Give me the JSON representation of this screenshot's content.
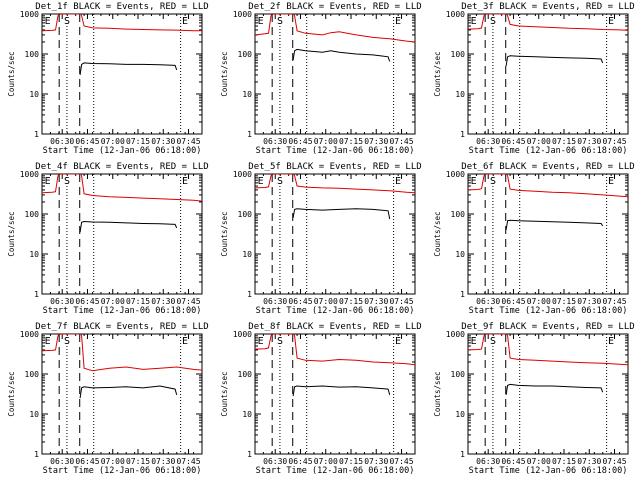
{
  "colors": {
    "events": "#000000",
    "lld": "#e00000",
    "background": "#ffffff"
  },
  "common": {
    "xlabel": "Start Time (12-Jan-06 06:18:00)",
    "ylabel": "Counts/sec",
    "xticks": [
      "06:30",
      "06:45",
      "07:00",
      "07:15",
      "07:30",
      "07:45"
    ],
    "yticks": [
      "1",
      "10",
      "100",
      "1000"
    ]
  },
  "chart_data": [
    {
      "type": "line",
      "title": "Det_1f BLACK = Events, RED = LLD",
      "x_unit": "minutes after 06:18:00",
      "xlim": [
        0,
        95
      ],
      "ylim": [
        1,
        1000
      ],
      "yscale": "log",
      "x_ticks_minutes": [
        12,
        27,
        42,
        57,
        72,
        87
      ],
      "markers": [
        {
          "label": "E",
          "x": 1
        },
        {
          "label": "S",
          "x": 12.5
        },
        {
          "label": "E",
          "x": 82.5
        }
      ],
      "dashed_lines_x": [
        10.2,
        22.4
      ],
      "dotted_lines_x": [
        14.8,
        30.7,
        82.3
      ],
      "series": [
        {
          "name": "LLD",
          "color": "#e00000",
          "x": [
            0,
            6,
            8,
            9.5,
            11,
            23,
            23.5,
            25,
            30,
            40,
            50,
            60,
            70,
            80,
            90,
            95
          ],
          "y": [
            380,
            390,
            400,
            900,
            1000,
            1000,
            900,
            500,
            450,
            440,
            420,
            410,
            400,
            395,
            380,
            380
          ]
        },
        {
          "name": "Events",
          "color": "#000000",
          "x": [
            22.6,
            23.5,
            25,
            30,
            40,
            50,
            60,
            70,
            79,
            80
          ],
          "y": [
            30,
            55,
            60,
            58,
            57,
            55,
            55,
            54,
            52,
            40
          ]
        }
      ]
    },
    {
      "type": "line",
      "title": "Det_2f BLACK = Events, RED = LLD",
      "x_unit": "minutes after 06:18:00",
      "xlim": [
        0,
        95
      ],
      "ylim": [
        1,
        1000
      ],
      "yscale": "log",
      "x_ticks_minutes": [
        12,
        27,
        42,
        57,
        72,
        87
      ],
      "markers": [
        {
          "label": "E",
          "x": 1
        },
        {
          "label": "S",
          "x": 12.5
        },
        {
          "label": "E",
          "x": 82.5
        }
      ],
      "dashed_lines_x": [
        10.2,
        22.4
      ],
      "dotted_lines_x": [
        14.8,
        30.7,
        82.3
      ],
      "series": [
        {
          "name": "LLD",
          "color": "#e00000",
          "x": [
            0,
            6,
            8,
            9.5,
            11,
            23,
            23.5,
            25,
            30,
            40,
            45,
            50,
            60,
            70,
            80,
            90,
            95
          ],
          "y": [
            300,
            320,
            330,
            900,
            1000,
            1000,
            900,
            380,
            330,
            300,
            340,
            360,
            300,
            260,
            240,
            210,
            200
          ]
        },
        {
          "name": "Events",
          "color": "#000000",
          "x": [
            22.6,
            23.5,
            25,
            30,
            40,
            45,
            50,
            60,
            70,
            79,
            80
          ],
          "y": [
            70,
            120,
            130,
            120,
            110,
            120,
            110,
            100,
            95,
            85,
            65
          ]
        }
      ]
    },
    {
      "type": "line",
      "title": "Det_3f BLACK = Events, RED = LLD",
      "x_unit": "minutes after 06:18:00",
      "xlim": [
        0,
        95
      ],
      "ylim": [
        1,
        1000
      ],
      "yscale": "log",
      "x_ticks_minutes": [
        12,
        27,
        42,
        57,
        72,
        87
      ],
      "markers": [
        {
          "label": "E",
          "x": 1
        },
        {
          "label": "S",
          "x": 12.5
        },
        {
          "label": "E",
          "x": 82.5
        }
      ],
      "dashed_lines_x": [
        10.2,
        22.4
      ],
      "dotted_lines_x": [
        14.8,
        30.7,
        82.3
      ],
      "series": [
        {
          "name": "LLD",
          "color": "#e00000",
          "x": [
            0,
            6,
            8,
            9.5,
            11,
            23,
            23.5,
            25,
            30,
            40,
            50,
            60,
            70,
            80,
            90,
            95
          ],
          "y": [
            420,
            430,
            450,
            900,
            1000,
            1000,
            900,
            550,
            500,
            480,
            460,
            440,
            430,
            410,
            400,
            390
          ]
        },
        {
          "name": "Events",
          "color": "#000000",
          "x": [
            22.6,
            23.5,
            25,
            30,
            40,
            50,
            60,
            70,
            79,
            80
          ],
          "y": [
            50,
            85,
            90,
            88,
            85,
            82,
            80,
            78,
            75,
            60
          ]
        }
      ]
    },
    {
      "type": "line",
      "title": "Det_4f BLACK = Events, RED = LLD",
      "x_unit": "minutes after 06:18:00",
      "xlim": [
        0,
        95
      ],
      "ylim": [
        1,
        1000
      ],
      "yscale": "log",
      "x_ticks_minutes": [
        12,
        27,
        42,
        57,
        72,
        87
      ],
      "markers": [
        {
          "label": "E",
          "x": 1
        },
        {
          "label": "S",
          "x": 12.5
        },
        {
          "label": "E",
          "x": 82.5
        }
      ],
      "dashed_lines_x": [
        10.2,
        22.4
      ],
      "dotted_lines_x": [
        14.8,
        30.7,
        82.3
      ],
      "series": [
        {
          "name": "LLD",
          "color": "#e00000",
          "x": [
            0,
            6,
            8,
            9.5,
            11,
            23,
            23.5,
            25,
            30,
            40,
            50,
            60,
            70,
            80,
            90,
            95
          ],
          "y": [
            340,
            350,
            360,
            900,
            1000,
            1000,
            900,
            320,
            290,
            270,
            260,
            250,
            240,
            230,
            220,
            210
          ]
        },
        {
          "name": "Events",
          "color": "#000000",
          "x": [
            22.6,
            23.5,
            25,
            30,
            40,
            50,
            60,
            70,
            79,
            80
          ],
          "y": [
            35,
            62,
            65,
            63,
            62,
            60,
            58,
            57,
            55,
            45
          ]
        }
      ]
    },
    {
      "type": "line",
      "title": "Det_5f BLACK = Events, RED = LLD",
      "x_unit": "minutes after 06:18:00",
      "xlim": [
        0,
        95
      ],
      "ylim": [
        1,
        1000
      ],
      "yscale": "log",
      "x_ticks_minutes": [
        12,
        27,
        42,
        57,
        72,
        87
      ],
      "markers": [
        {
          "label": "E",
          "x": 1
        },
        {
          "label": "S",
          "x": 12.5
        },
        {
          "label": "E",
          "x": 82.5
        }
      ],
      "dashed_lines_x": [
        10.2,
        22.4
      ],
      "dotted_lines_x": [
        14.8,
        30.7,
        82.3
      ],
      "series": [
        {
          "name": "LLD",
          "color": "#e00000",
          "x": [
            0,
            6,
            8,
            9.5,
            11,
            23,
            23.5,
            25,
            30,
            40,
            50,
            60,
            70,
            80,
            90,
            95
          ],
          "y": [
            450,
            460,
            480,
            900,
            1000,
            1000,
            900,
            500,
            470,
            450,
            440,
            420,
            400,
            380,
            350,
            340
          ]
        },
        {
          "name": "Events",
          "color": "#000000",
          "x": [
            22.6,
            23.5,
            25,
            30,
            40,
            50,
            60,
            70,
            79,
            80
          ],
          "y": [
            80,
            130,
            135,
            130,
            125,
            130,
            135,
            130,
            120,
            75
          ]
        }
      ]
    },
    {
      "type": "line",
      "title": "Det_6f BLACK = Events, RED = LLD",
      "x_unit": "minutes after 06:18:00",
      "xlim": [
        0,
        95
      ],
      "ylim": [
        1,
        1000
      ],
      "yscale": "log",
      "x_ticks_minutes": [
        12,
        27,
        42,
        57,
        72,
        87
      ],
      "markers": [
        {
          "label": "E",
          "x": 1
        },
        {
          "label": "S",
          "x": 12.5
        },
        {
          "label": "E",
          "x": 82.5
        }
      ],
      "dashed_lines_x": [
        10.2,
        22.4
      ],
      "dotted_lines_x": [
        14.8,
        30.7,
        82.3
      ],
      "series": [
        {
          "name": "LLD",
          "color": "#e00000",
          "x": [
            0,
            6,
            8,
            9.5,
            11,
            23,
            23.5,
            25,
            30,
            40,
            50,
            60,
            70,
            80,
            90,
            95
          ],
          "y": [
            400,
            410,
            430,
            900,
            1000,
            1000,
            900,
            420,
            390,
            370,
            350,
            340,
            320,
            300,
            280,
            270
          ]
        },
        {
          "name": "Events",
          "color": "#000000",
          "x": [
            22.6,
            23.5,
            25,
            30,
            40,
            50,
            60,
            70,
            79,
            80
          ],
          "y": [
            40,
            68,
            70,
            68,
            66,
            64,
            62,
            60,
            58,
            50
          ]
        }
      ]
    },
    {
      "type": "line",
      "title": "Det_7f BLACK = Events, RED = LLD",
      "x_unit": "minutes after 06:18:00",
      "xlim": [
        0,
        95
      ],
      "ylim": [
        1,
        1000
      ],
      "yscale": "log",
      "x_ticks_minutes": [
        12,
        27,
        42,
        57,
        72,
        87
      ],
      "markers": [
        {
          "label": "E",
          "x": 1
        },
        {
          "label": "S",
          "x": 12.5
        },
        {
          "label": "E",
          "x": 82.5
        }
      ],
      "dashed_lines_x": [
        10.2,
        22.4
      ],
      "dotted_lines_x": [
        14.8,
        30.7,
        82.3
      ],
      "series": [
        {
          "name": "LLD",
          "color": "#e00000",
          "x": [
            0,
            6,
            8,
            9.5,
            11,
            23,
            23.5,
            25,
            30,
            40,
            50,
            60,
            70,
            80,
            90,
            95
          ],
          "y": [
            380,
            390,
            400,
            900,
            1000,
            1000,
            900,
            140,
            120,
            140,
            150,
            130,
            140,
            150,
            130,
            125
          ]
        },
        {
          "name": "Events",
          "color": "#000000",
          "x": [
            22.6,
            23.5,
            25,
            30,
            40,
            50,
            60,
            70,
            79,
            80
          ],
          "y": [
            25,
            45,
            48,
            45,
            46,
            48,
            45,
            50,
            42,
            30
          ]
        }
      ]
    },
    {
      "type": "line",
      "title": "Det_8f BLACK = Events, RED = LLD",
      "x_unit": "minutes after 06:18:00",
      "xlim": [
        0,
        95
      ],
      "ylim": [
        1,
        1000
      ],
      "yscale": "log",
      "x_ticks_minutes": [
        12,
        27,
        42,
        57,
        72,
        87
      ],
      "markers": [
        {
          "label": "E",
          "x": 1
        },
        {
          "label": "S",
          "x": 12.5
        },
        {
          "label": "E",
          "x": 82.5
        }
      ],
      "dashed_lines_x": [
        10.2,
        22.4
      ],
      "dotted_lines_x": [
        14.8,
        30.7,
        82.3
      ],
      "series": [
        {
          "name": "LLD",
          "color": "#e00000",
          "x": [
            0,
            6,
            8,
            9.5,
            11,
            23,
            23.5,
            25,
            30,
            40,
            50,
            60,
            70,
            80,
            90,
            95
          ],
          "y": [
            420,
            430,
            450,
            900,
            1000,
            1000,
            900,
            250,
            220,
            210,
            230,
            220,
            200,
            190,
            180,
            170
          ]
        },
        {
          "name": "Events",
          "color": "#000000",
          "x": [
            22.6,
            23.5,
            25,
            30,
            40,
            50,
            60,
            70,
            79,
            80
          ],
          "y": [
            28,
            48,
            50,
            48,
            50,
            47,
            48,
            45,
            42,
            30
          ]
        }
      ]
    },
    {
      "type": "line",
      "title": "Det_9f BLACK = Events, RED = LLD",
      "x_unit": "minutes after 06:18:00",
      "xlim": [
        0,
        95
      ],
      "ylim": [
        1,
        1000
      ],
      "yscale": "log",
      "x_ticks_minutes": [
        12,
        27,
        42,
        57,
        72,
        87
      ],
      "markers": [
        {
          "label": "E",
          "x": 1
        },
        {
          "label": "S",
          "x": 12.5
        },
        {
          "label": "E",
          "x": 82.5
        }
      ],
      "dashed_lines_x": [
        10.2,
        22.4
      ],
      "dotted_lines_x": [
        14.8,
        30.7,
        82.3
      ],
      "series": [
        {
          "name": "LLD",
          "color": "#e00000",
          "x": [
            0,
            6,
            8,
            9.5,
            11,
            23,
            23.5,
            25,
            30,
            40,
            50,
            60,
            70,
            80,
            90,
            95
          ],
          "y": [
            400,
            410,
            420,
            900,
            1000,
            1000,
            900,
            250,
            230,
            220,
            210,
            200,
            190,
            185,
            175,
            170
          ]
        },
        {
          "name": "Events",
          "color": "#000000",
          "x": [
            22.6,
            23.5,
            25,
            30,
            40,
            50,
            60,
            70,
            79,
            80
          ],
          "y": [
            30,
            52,
            55,
            52,
            50,
            50,
            48,
            46,
            45,
            35
          ]
        }
      ]
    }
  ]
}
